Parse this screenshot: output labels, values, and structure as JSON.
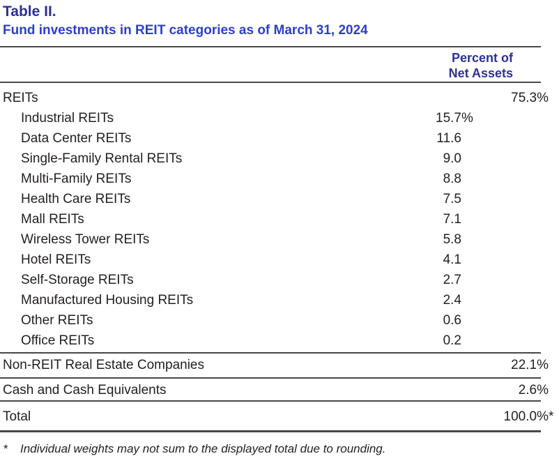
{
  "table": {
    "title": "Table II.",
    "subtitle": "Fund investments in REIT categories as of March 31, 2024",
    "header": {
      "line1": "Percent of",
      "line2": "Net Assets"
    },
    "reits_row": {
      "label": "REITs",
      "value": "75.3%",
      "star": ""
    },
    "sub_rows": [
      {
        "label": "Industrial REITs",
        "num": "15.7",
        "suffix": "%"
      },
      {
        "label": "Data Center REITs",
        "num": "11.6",
        "suffix": ""
      },
      {
        "label": "Single-Family Rental REITs",
        "num": "9.0",
        "suffix": ""
      },
      {
        "label": "Multi-Family REITs",
        "num": "8.8",
        "suffix": ""
      },
      {
        "label": "Health Care REITs",
        "num": "7.5",
        "suffix": ""
      },
      {
        "label": "Mall REITs",
        "num": "7.1",
        "suffix": ""
      },
      {
        "label": "Wireless Tower REITs",
        "num": "5.8",
        "suffix": ""
      },
      {
        "label": "Hotel REITs",
        "num": "4.1",
        "suffix": ""
      },
      {
        "label": "Self-Storage REITs",
        "num": "2.7",
        "suffix": ""
      },
      {
        "label": "Manufactured Housing REITs",
        "num": "2.4",
        "suffix": ""
      },
      {
        "label": "Other REITs",
        "num": "0.6",
        "suffix": ""
      },
      {
        "label": "Office REITs",
        "num": "0.2",
        "suffix": ""
      }
    ],
    "summary_rows": [
      {
        "label": "Non-REIT Real Estate Companies",
        "value": "22.1%",
        "star": ""
      },
      {
        "label": "Cash and Cash Equivalents",
        "value": "2.6%",
        "star": ""
      },
      {
        "label": "Total",
        "value": "100.0%",
        "star": "*"
      }
    ],
    "footnote": {
      "marker": "*",
      "text": "Individual weights may not sum to the displayed total due to rounding."
    },
    "colors": {
      "title_navy": "#2E3192",
      "subtitle_blue": "#2D3FC5",
      "body_text": "#242021",
      "rule_gray": "#474747"
    }
  }
}
